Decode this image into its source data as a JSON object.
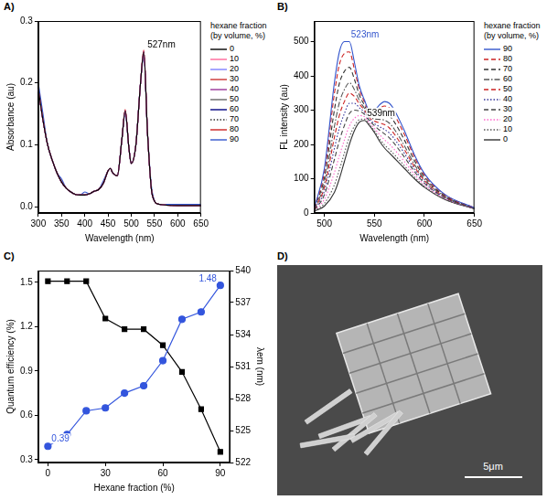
{
  "chart_data": [
    {
      "type": "line",
      "panel_label": "A)",
      "x_label": "Wavelength (nm)",
      "y_label": "Absorbance (au)",
      "xlim": [
        300,
        650
      ],
      "xticks": [
        300,
        350,
        400,
        450,
        500,
        550,
        600,
        650
      ],
      "ylim": [
        -0.01,
        0.3
      ],
      "yticks": [
        {
          "value": 0,
          "label": "0.0"
        },
        {
          "value": 0.1,
          "label": "0.1"
        },
        {
          "value": 0.2,
          "label": "0.2"
        },
        {
          "value": 0.3,
          "label": "0.3"
        }
      ],
      "grid": false,
      "legend": "right",
      "legend_title": "hexane fraction (by volume, %)",
      "annotations": [
        {
          "text": "527nm",
          "x": 527,
          "y": 0.25,
          "color": "#000000"
        }
      ],
      "x": [
        300,
        310,
        320,
        330,
        340,
        350,
        360,
        370,
        380,
        390,
        400,
        410,
        420,
        430,
        440,
        450,
        455,
        460,
        470,
        480,
        487,
        495,
        500,
        510,
        520,
        527,
        535,
        545,
        560,
        600,
        650
      ],
      "series": [
        {
          "name": "0",
          "color": "#000000",
          "line_style": "solid",
          "values": [
            0.19,
            0.14,
            0.1,
            0.075,
            0.055,
            0.04,
            0.03,
            0.024,
            0.02,
            0.019,
            0.019,
            0.021,
            0.025,
            0.028,
            0.038,
            0.058,
            0.062,
            0.055,
            0.05,
            0.11,
            0.155,
            0.095,
            0.07,
            0.1,
            0.2,
            0.25,
            0.12,
            0.02,
            0.004,
            0.002,
            0.002
          ]
        },
        {
          "name": "10",
          "color": "#ff6699",
          "line_style": "solid",
          "values": [
            0.19,
            0.14,
            0.1,
            0.075,
            0.055,
            0.04,
            0.03,
            0.024,
            0.02,
            0.019,
            0.019,
            0.021,
            0.025,
            0.028,
            0.038,
            0.058,
            0.062,
            0.055,
            0.05,
            0.11,
            0.156,
            0.095,
            0.07,
            0.1,
            0.2,
            0.252,
            0.12,
            0.02,
            0.004,
            0.002,
            0.002
          ]
        },
        {
          "name": "20",
          "color": "#7f7fff",
          "line_style": "solid",
          "values": [
            0.19,
            0.14,
            0.1,
            0.075,
            0.055,
            0.04,
            0.03,
            0.024,
            0.02,
            0.019,
            0.019,
            0.021,
            0.025,
            0.028,
            0.038,
            0.058,
            0.062,
            0.055,
            0.05,
            0.11,
            0.153,
            0.095,
            0.07,
            0.1,
            0.2,
            0.248,
            0.12,
            0.02,
            0.004,
            0.002,
            0.002
          ]
        },
        {
          "name": "30",
          "color": "#cc3333",
          "line_style": "solid",
          "values": [
            0.19,
            0.14,
            0.1,
            0.075,
            0.055,
            0.04,
            0.03,
            0.024,
            0.02,
            0.019,
            0.019,
            0.021,
            0.025,
            0.028,
            0.038,
            0.058,
            0.062,
            0.055,
            0.05,
            0.11,
            0.155,
            0.095,
            0.07,
            0.1,
            0.2,
            0.249,
            0.12,
            0.02,
            0.004,
            0.002,
            0.002
          ]
        },
        {
          "name": "40",
          "color": "#993399",
          "line_style": "solid",
          "values": [
            0.19,
            0.14,
            0.1,
            0.075,
            0.055,
            0.04,
            0.03,
            0.024,
            0.02,
            0.019,
            0.019,
            0.021,
            0.025,
            0.028,
            0.038,
            0.058,
            0.062,
            0.055,
            0.05,
            0.11,
            0.154,
            0.095,
            0.07,
            0.1,
            0.2,
            0.251,
            0.12,
            0.02,
            0.004,
            0.002,
            0.002
          ]
        },
        {
          "name": "50",
          "color": "#666666",
          "line_style": "solid",
          "values": [
            0.188,
            0.14,
            0.1,
            0.075,
            0.055,
            0.04,
            0.03,
            0.024,
            0.02,
            0.019,
            0.019,
            0.021,
            0.025,
            0.028,
            0.038,
            0.058,
            0.062,
            0.055,
            0.05,
            0.11,
            0.155,
            0.095,
            0.07,
            0.1,
            0.2,
            0.25,
            0.12,
            0.02,
            0.004,
            0.002,
            0.002
          ]
        },
        {
          "name": "60",
          "color": "#000080",
          "line_style": "solid",
          "values": [
            0.19,
            0.14,
            0.1,
            0.075,
            0.055,
            0.04,
            0.03,
            0.024,
            0.02,
            0.019,
            0.019,
            0.021,
            0.025,
            0.028,
            0.038,
            0.058,
            0.062,
            0.055,
            0.05,
            0.11,
            0.155,
            0.095,
            0.07,
            0.1,
            0.2,
            0.247,
            0.12,
            0.02,
            0.004,
            0.002,
            0.002
          ]
        },
        {
          "name": "70",
          "color": "#333333",
          "line_style": "dotted",
          "values": [
            0.19,
            0.14,
            0.1,
            0.075,
            0.055,
            0.04,
            0.03,
            0.024,
            0.02,
            0.019,
            0.019,
            0.021,
            0.025,
            0.028,
            0.038,
            0.058,
            0.062,
            0.055,
            0.05,
            0.11,
            0.155,
            0.095,
            0.07,
            0.1,
            0.2,
            0.25,
            0.12,
            0.022,
            0.004,
            0.002,
            0.002
          ]
        },
        {
          "name": "80",
          "color": "#cc2222",
          "line_style": "solid",
          "values": [
            0.19,
            0.14,
            0.1,
            0.075,
            0.055,
            0.04,
            0.03,
            0.024,
            0.02,
            0.019,
            0.019,
            0.021,
            0.025,
            0.028,
            0.038,
            0.058,
            0.062,
            0.055,
            0.05,
            0.11,
            0.157,
            0.095,
            0.07,
            0.1,
            0.2,
            0.253,
            0.12,
            0.02,
            0.004,
            0.002,
            0.002
          ]
        },
        {
          "name": "90",
          "color": "#3355cc",
          "line_style": "solid",
          "values": [
            0.2,
            0.15,
            0.1,
            0.075,
            0.055,
            0.045,
            0.03,
            0.024,
            0.02,
            0.019,
            0.024,
            0.021,
            0.025,
            0.028,
            0.042,
            0.058,
            0.062,
            0.055,
            0.05,
            0.11,
            0.151,
            0.095,
            0.07,
            0.1,
            0.2,
            0.245,
            0.12,
            0.025,
            0.004,
            0.004,
            0.004
          ]
        }
      ]
    },
    {
      "type": "line",
      "panel_label": "B)",
      "x_label": "Wavelength (nm)",
      "y_label": "FL intensity (au)",
      "xlim": [
        490,
        650
      ],
      "xticks": [
        500,
        550,
        600,
        650
      ],
      "ylim": [
        0,
        560
      ],
      "yticks": [
        0,
        100,
        200,
        300,
        400,
        500
      ],
      "grid": false,
      "legend": "right",
      "legend_title": "hexane fraction (by volume, %)",
      "annotations": [
        {
          "text": "523nm",
          "x": 523,
          "y": 500,
          "color": "#3355cc"
        },
        {
          "text": "539nm",
          "x": 539,
          "y": 270,
          "color": "#000000"
        }
      ],
      "x": [
        490,
        500,
        510,
        515,
        520,
        525,
        530,
        535,
        540,
        545,
        550,
        555,
        560,
        565,
        570,
        580,
        590,
        600,
        620,
        650
      ],
      "series": [
        {
          "name": "90",
          "color": "#3355cc",
          "line_style": "solid",
          "values": [
            15,
            130,
            380,
            470,
            500,
            500,
            440,
            370,
            330,
            300,
            300,
            315,
            325,
            320,
            300,
            240,
            170,
            115,
            55,
            15
          ]
        },
        {
          "name": "80",
          "color": "#cc2222",
          "line_style": "dashed",
          "values": [
            14,
            119,
            348,
            433,
            465,
            470,
            420,
            360,
            324,
            296,
            294,
            305,
            312,
            306,
            286,
            229,
            163,
            111,
            54,
            15
          ]
        },
        {
          "name": "70",
          "color": "#333333",
          "line_style": "dashed",
          "values": [
            13,
            103,
            300,
            378,
            413,
            425,
            390,
            344,
            315,
            289,
            284,
            289,
            291,
            284,
            265,
            213,
            153,
            105,
            51,
            14
          ]
        },
        {
          "name": "60",
          "color": "#555555",
          "line_style": "dashdot",
          "values": [
            11,
            86,
            252,
            322,
            360,
            380,
            360,
            328,
            306,
            282,
            274,
            273,
            271,
            262,
            244,
            196,
            142,
            99,
            49,
            14
          ]
        },
        {
          "name": "50",
          "color": "#cc2222",
          "line_style": "dashed",
          "values": [
            10,
            75,
            220,
            285,
            325,
            350,
            340,
            318,
            300,
            278,
            268,
            263,
            258,
            248,
            230,
            185,
            135,
            95,
            48,
            14
          ]
        },
        {
          "name": "40",
          "color": "#333399",
          "line_style": "dotted",
          "values": [
            9,
            64,
            188,
            248,
            290,
            320,
            320,
            307,
            294,
            273,
            261,
            252,
            244,
            233,
            216,
            174,
            128,
            91,
            46,
            13
          ]
        },
        {
          "name": "30",
          "color": "#444444",
          "line_style": "dashed",
          "values": [
            8,
            53,
            156,
            211,
            255,
            290,
            300,
            297,
            288,
            269,
            255,
            242,
            231,
            219,
            202,
            163,
            121,
            87,
            45,
            13
          ]
        },
        {
          "name": "20",
          "color": "#ff66cc",
          "line_style": "dotted",
          "values": [
            7,
            40,
            118,
            167,
            213,
            254,
            276,
            284,
            281,
            263,
            247,
            229,
            214,
            201,
            185,
            150,
            113,
            82,
            43,
            13
          ]
        },
        {
          "name": "10",
          "color": "#555555",
          "line_style": "dotted",
          "values": [
            6,
            28,
            82,
            126,
            175,
            221,
            254,
            272,
            274,
            258,
            240,
            217,
            199,
            185,
            170,
            138,
            105,
            78,
            41,
            12
          ]
        },
        {
          "name": "0",
          "color": "#333333",
          "line_style": "solid",
          "values": [
            5,
            20,
            60,
            100,
            150,
            200,
            240,
            265,
            270,
            255,
            235,
            210,
            190,
            175,
            160,
            130,
            100,
            75,
            40,
            12
          ]
        }
      ]
    },
    {
      "type": "line",
      "panel_label": "C)",
      "x_label": "Hexane fraction (%)",
      "y_label": "Quantum efficiency (%)",
      "y2_label": "λem (nm)",
      "xlim": [
        -5,
        95
      ],
      "xticks": [
        0,
        30,
        60,
        90
      ],
      "ylim": [
        0.28,
        1.58
      ],
      "yticks": [
        0.3,
        0.6,
        0.9,
        1.2,
        1.5
      ],
      "y2lim": [
        522,
        540
      ],
      "y2ticks": [
        522,
        525,
        528,
        531,
        534,
        537,
        540
      ],
      "grid": false,
      "annotations": [
        {
          "text": "0.39",
          "x": 0,
          "y": 0.39,
          "color": "#3355dd"
        },
        {
          "text": "1.48",
          "x": 90,
          "y": 1.48,
          "color": "#3355dd"
        }
      ],
      "x": [
        0,
        10,
        20,
        30,
        40,
        50,
        60,
        70,
        80,
        90
      ],
      "series": [
        {
          "color": "#3355dd",
          "marker": "circle",
          "line_style": "solid",
          "values": [
            0.39,
            0.47,
            0.63,
            0.65,
            0.75,
            0.8,
            0.97,
            1.25,
            1.3,
            1.48
          ]
        },
        {
          "color": "#000000",
          "marker": "square",
          "line_style": "solid",
          "axis": "y2",
          "values": [
            539,
            539,
            539,
            535.5,
            534.5,
            534.5,
            533,
            530.5,
            527,
            523
          ]
        }
      ]
    },
    {
      "type": "image",
      "panel_label": "D)",
      "scale_bar": "5μm"
    }
  ]
}
